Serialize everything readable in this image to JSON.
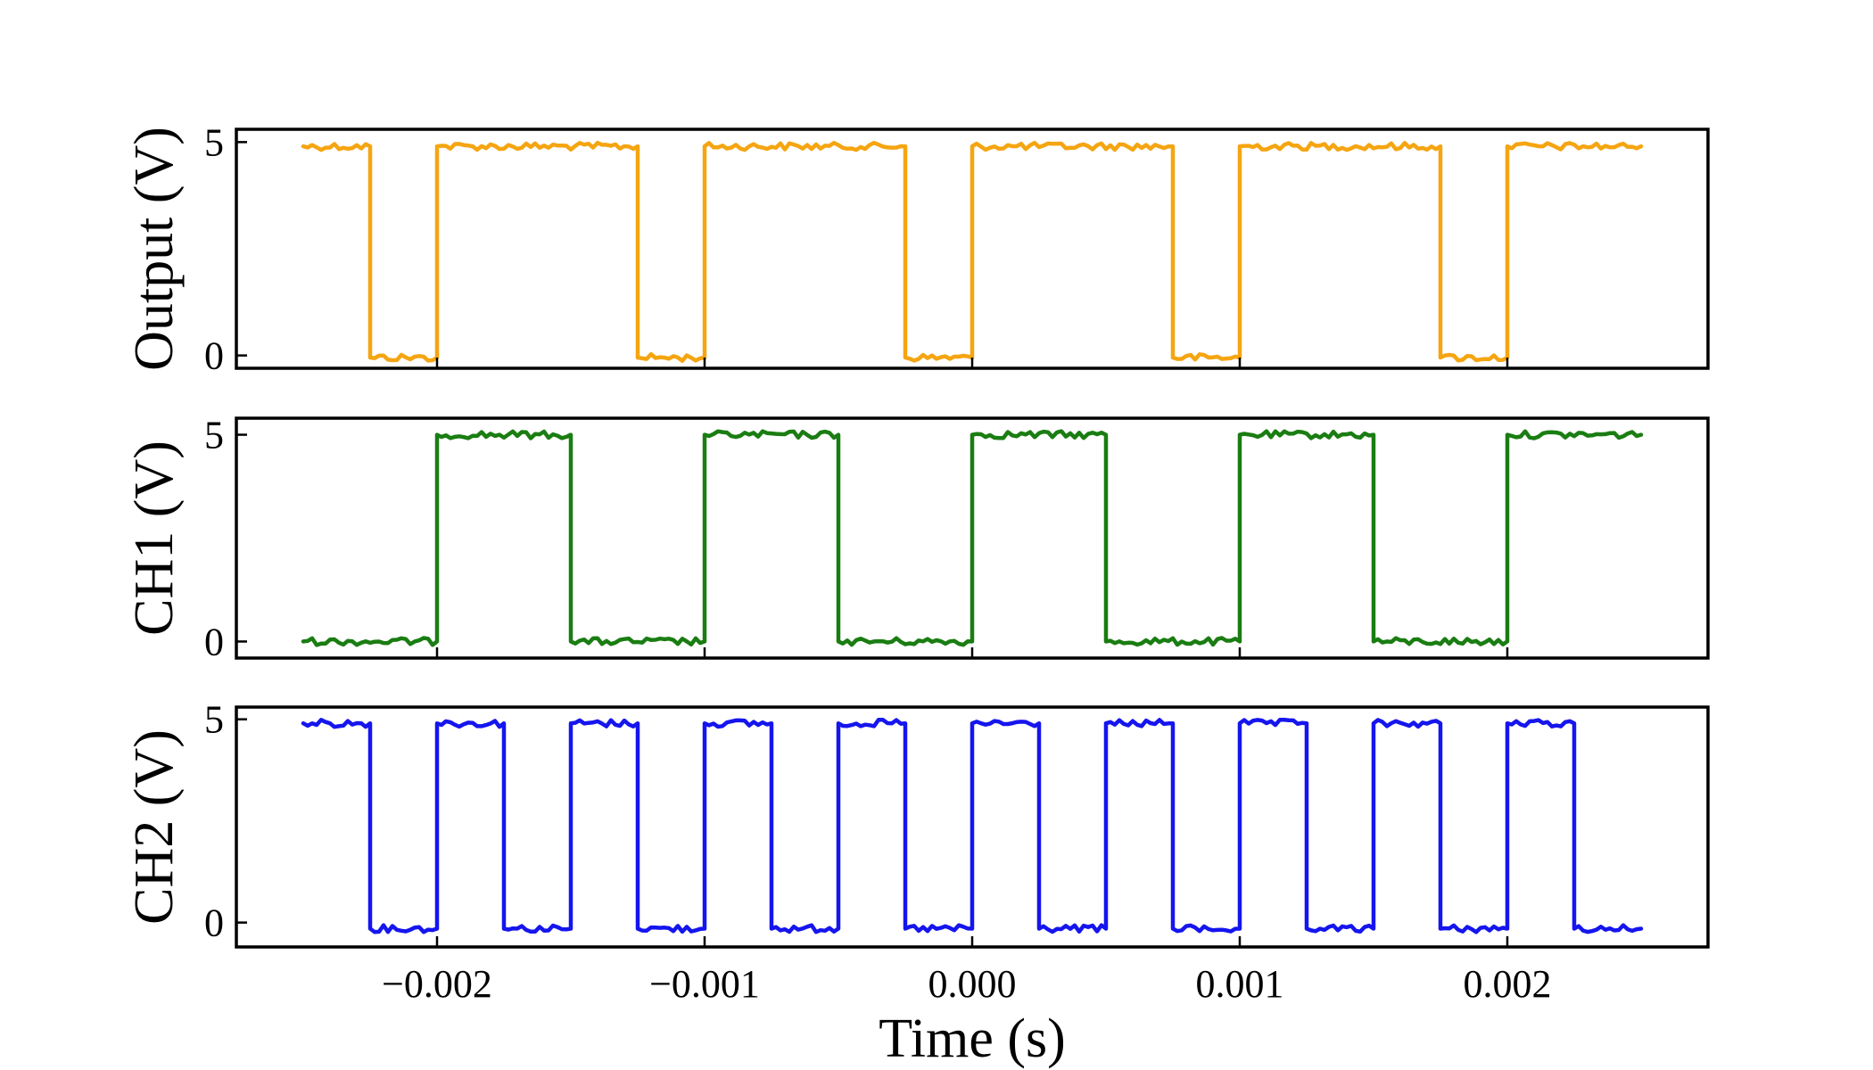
{
  "chart_data": [
    {
      "type": "line",
      "ylabel": "Output (V)",
      "xlabel": "",
      "color": "#f5a511",
      "xlim": [
        -0.00275,
        0.00275
      ],
      "ylim": [
        -0.3,
        5.3
      ],
      "yticks": [
        0,
        5
      ],
      "ytick_labels": [
        "0",
        "5"
      ],
      "xticks": [
        -0.002,
        -0.001,
        0.0,
        0.001,
        0.002
      ],
      "xtick_labels": [],
      "series": [
        {
          "x": [
            -0.0025,
            -0.00225,
            -0.00225,
            -0.002,
            -0.002,
            -0.00125,
            -0.00125,
            -0.001,
            -0.001,
            -0.00025,
            -0.00025,
            0.0,
            0.0,
            0.00075,
            0.00075,
            0.001,
            0.001,
            0.00175,
            0.00175,
            0.002,
            0.002,
            0.0025
          ],
          "y": [
            4.9,
            4.9,
            -0.05,
            -0.05,
            4.9,
            4.9,
            -0.05,
            -0.05,
            4.9,
            4.9,
            -0.05,
            -0.05,
            4.9,
            4.9,
            -0.05,
            -0.05,
            4.9,
            4.9,
            -0.05,
            -0.05,
            4.9,
            4.9
          ]
        }
      ]
    },
    {
      "type": "line",
      "ylabel": "CH1 (V)",
      "xlabel": "",
      "color": "#1a7d12",
      "xlim": [
        -0.00275,
        0.00275
      ],
      "ylim": [
        -0.4,
        5.4
      ],
      "yticks": [
        0,
        5
      ],
      "ytick_labels": [
        "0",
        "5"
      ],
      "xticks": [
        -0.002,
        -0.001,
        0.0,
        0.001,
        0.002
      ],
      "xtick_labels": [],
      "series": [
        {
          "x": [
            -0.0025,
            -0.002,
            -0.002,
            -0.0015,
            -0.0015,
            -0.001,
            -0.001,
            -0.0005,
            -0.0005,
            0.0,
            0.0,
            0.0005,
            0.0005,
            0.001,
            0.001,
            0.0015,
            0.0015,
            0.002,
            0.002,
            0.0025
          ],
          "y": [
            0.0,
            0.0,
            5.0,
            5.0,
            0.0,
            0.0,
            5.0,
            5.0,
            0.0,
            0.0,
            5.0,
            5.0,
            0.0,
            0.0,
            5.0,
            5.0,
            0.0,
            0.0,
            5.0,
            5.0
          ]
        }
      ]
    },
    {
      "type": "line",
      "ylabel": "CH2 (V)",
      "xlabel": "Time (s)",
      "color": "#1515ee",
      "xlim": [
        -0.00275,
        0.00275
      ],
      "ylim": [
        -0.6,
        5.3
      ],
      "yticks": [
        0,
        5
      ],
      "ytick_labels": [
        "0",
        "5"
      ],
      "xticks": [
        -0.002,
        -0.001,
        0.0,
        0.001,
        0.002
      ],
      "xtick_labels": [
        "−0.002",
        "−0.001",
        "0.000",
        "0.001",
        "0.002"
      ],
      "series": [
        {
          "x": [
            -0.0025,
            -0.00225,
            -0.00225,
            -0.002,
            -0.002,
            -0.00175,
            -0.00175,
            -0.0015,
            -0.0015,
            -0.00125,
            -0.00125,
            -0.001,
            -0.001,
            -0.00075,
            -0.00075,
            -0.0005,
            -0.0005,
            -0.00025,
            -0.00025,
            0.0,
            0.0,
            0.00025,
            0.00025,
            0.0005,
            0.0005,
            0.00075,
            0.00075,
            0.001,
            0.001,
            0.00125,
            0.00125,
            0.0015,
            0.0015,
            0.00175,
            0.00175,
            0.002,
            0.002,
            0.00225,
            0.00225,
            0.0025
          ],
          "y": [
            4.9,
            4.9,
            -0.15,
            -0.15,
            4.9,
            4.9,
            -0.15,
            -0.15,
            4.9,
            4.9,
            -0.15,
            -0.15,
            4.9,
            4.9,
            -0.15,
            -0.15,
            4.9,
            4.9,
            -0.15,
            -0.15,
            4.9,
            4.9,
            -0.15,
            -0.15,
            4.9,
            4.9,
            -0.15,
            -0.15,
            4.9,
            4.9,
            -0.15,
            -0.15,
            4.9,
            4.9,
            -0.15,
            -0.15,
            4.9,
            4.9,
            -0.15,
            -0.15
          ]
        }
      ]
    }
  ]
}
